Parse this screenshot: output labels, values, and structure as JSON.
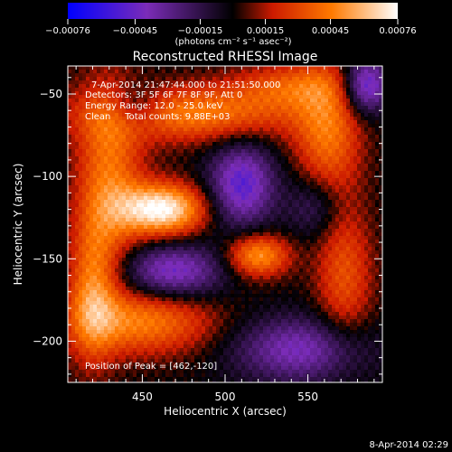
{
  "chart_data": {
    "type": "heatmap",
    "title": "Reconstructed RHESSI Image",
    "xlabel": "Heliocentric X (arcsec)",
    "ylabel": "Heliocentric Y (arcsec)",
    "xlim": [
      405,
      595
    ],
    "ylim": [
      -225,
      -33
    ],
    "x_ticks": [
      450,
      500,
      550
    ],
    "x_tick_labels": [
      "450",
      "500",
      "550"
    ],
    "y_ticks": [
      -50,
      -100,
      -150,
      -200
    ],
    "y_tick_labels": [
      "−50",
      "−100",
      "−150",
      "−200"
    ],
    "colorbar": {
      "min": -0.00076,
      "max": 0.00076,
      "ticks": [
        -0.00076,
        -0.00045,
        -0.00015,
        0.00015,
        0.00045,
        0.00076
      ],
      "tick_labels": [
        "−0.00076",
        "−0.00045",
        "−0.00015",
        "0.00015",
        "0.00045",
        "0.00076"
      ],
      "unit_label": "(photons cm⁻² s⁻¹ asec⁻²)",
      "palette": [
        "#0000ff",
        "#7b2cb8",
        "#000000",
        "#cc1a00",
        "#ff7a00",
        "#ffffff"
      ]
    },
    "annotations": [
      "7-Apr-2014 21:47:44.000 to 21:51:50.000",
      "Detectors: 3F 5F 6F 7F 8F 9F, Att 0",
      "Energy Range: 12.0 - 25.0 keV",
      "Clean     Total counts: 9.88E+03"
    ],
    "peak_label": "Position of Peak = [462,-120]",
    "peak": {
      "x": 462,
      "y": -120
    },
    "sources": [
      {
        "x": 462,
        "y": -120,
        "amp": 0.00076,
        "sx": 18,
        "sy": 11
      },
      {
        "x": 520,
        "y": -148,
        "amp": 0.00052,
        "sx": 13,
        "sy": 9
      },
      {
        "x": 480,
        "y": -62,
        "amp": 0.00045,
        "sx": 45,
        "sy": 12
      },
      {
        "x": 562,
        "y": -75,
        "amp": 0.0004,
        "sx": 14,
        "sy": 28
      },
      {
        "x": 430,
        "y": -100,
        "amp": 0.00042,
        "sx": 14,
        "sy": 40
      },
      {
        "x": 450,
        "y": -188,
        "amp": 0.00045,
        "sx": 30,
        "sy": 14
      },
      {
        "x": 420,
        "y": -170,
        "amp": 0.0004,
        "sx": 10,
        "sy": 30
      },
      {
        "x": 572,
        "y": -160,
        "amp": 0.00032,
        "sx": 12,
        "sy": 30
      },
      {
        "x": 540,
        "y": -45,
        "amp": 0.0003,
        "sx": 25,
        "sy": 10
      },
      {
        "x": 510,
        "y": -105,
        "amp": -0.0005,
        "sx": 14,
        "sy": 18
      },
      {
        "x": 468,
        "y": -158,
        "amp": -0.00045,
        "sx": 22,
        "sy": 12
      },
      {
        "x": 585,
        "y": -45,
        "amp": -0.00055,
        "sx": 10,
        "sy": 12
      },
      {
        "x": 545,
        "y": -205,
        "amp": -0.0004,
        "sx": 28,
        "sy": 14
      },
      {
        "x": 445,
        "y": -58,
        "amp": -0.0003,
        "sx": 12,
        "sy": 10
      },
      {
        "x": 555,
        "y": -118,
        "amp": -0.00025,
        "sx": 12,
        "sy": 14
      }
    ]
  },
  "footer_date": "8-Apr-2014 02:29"
}
